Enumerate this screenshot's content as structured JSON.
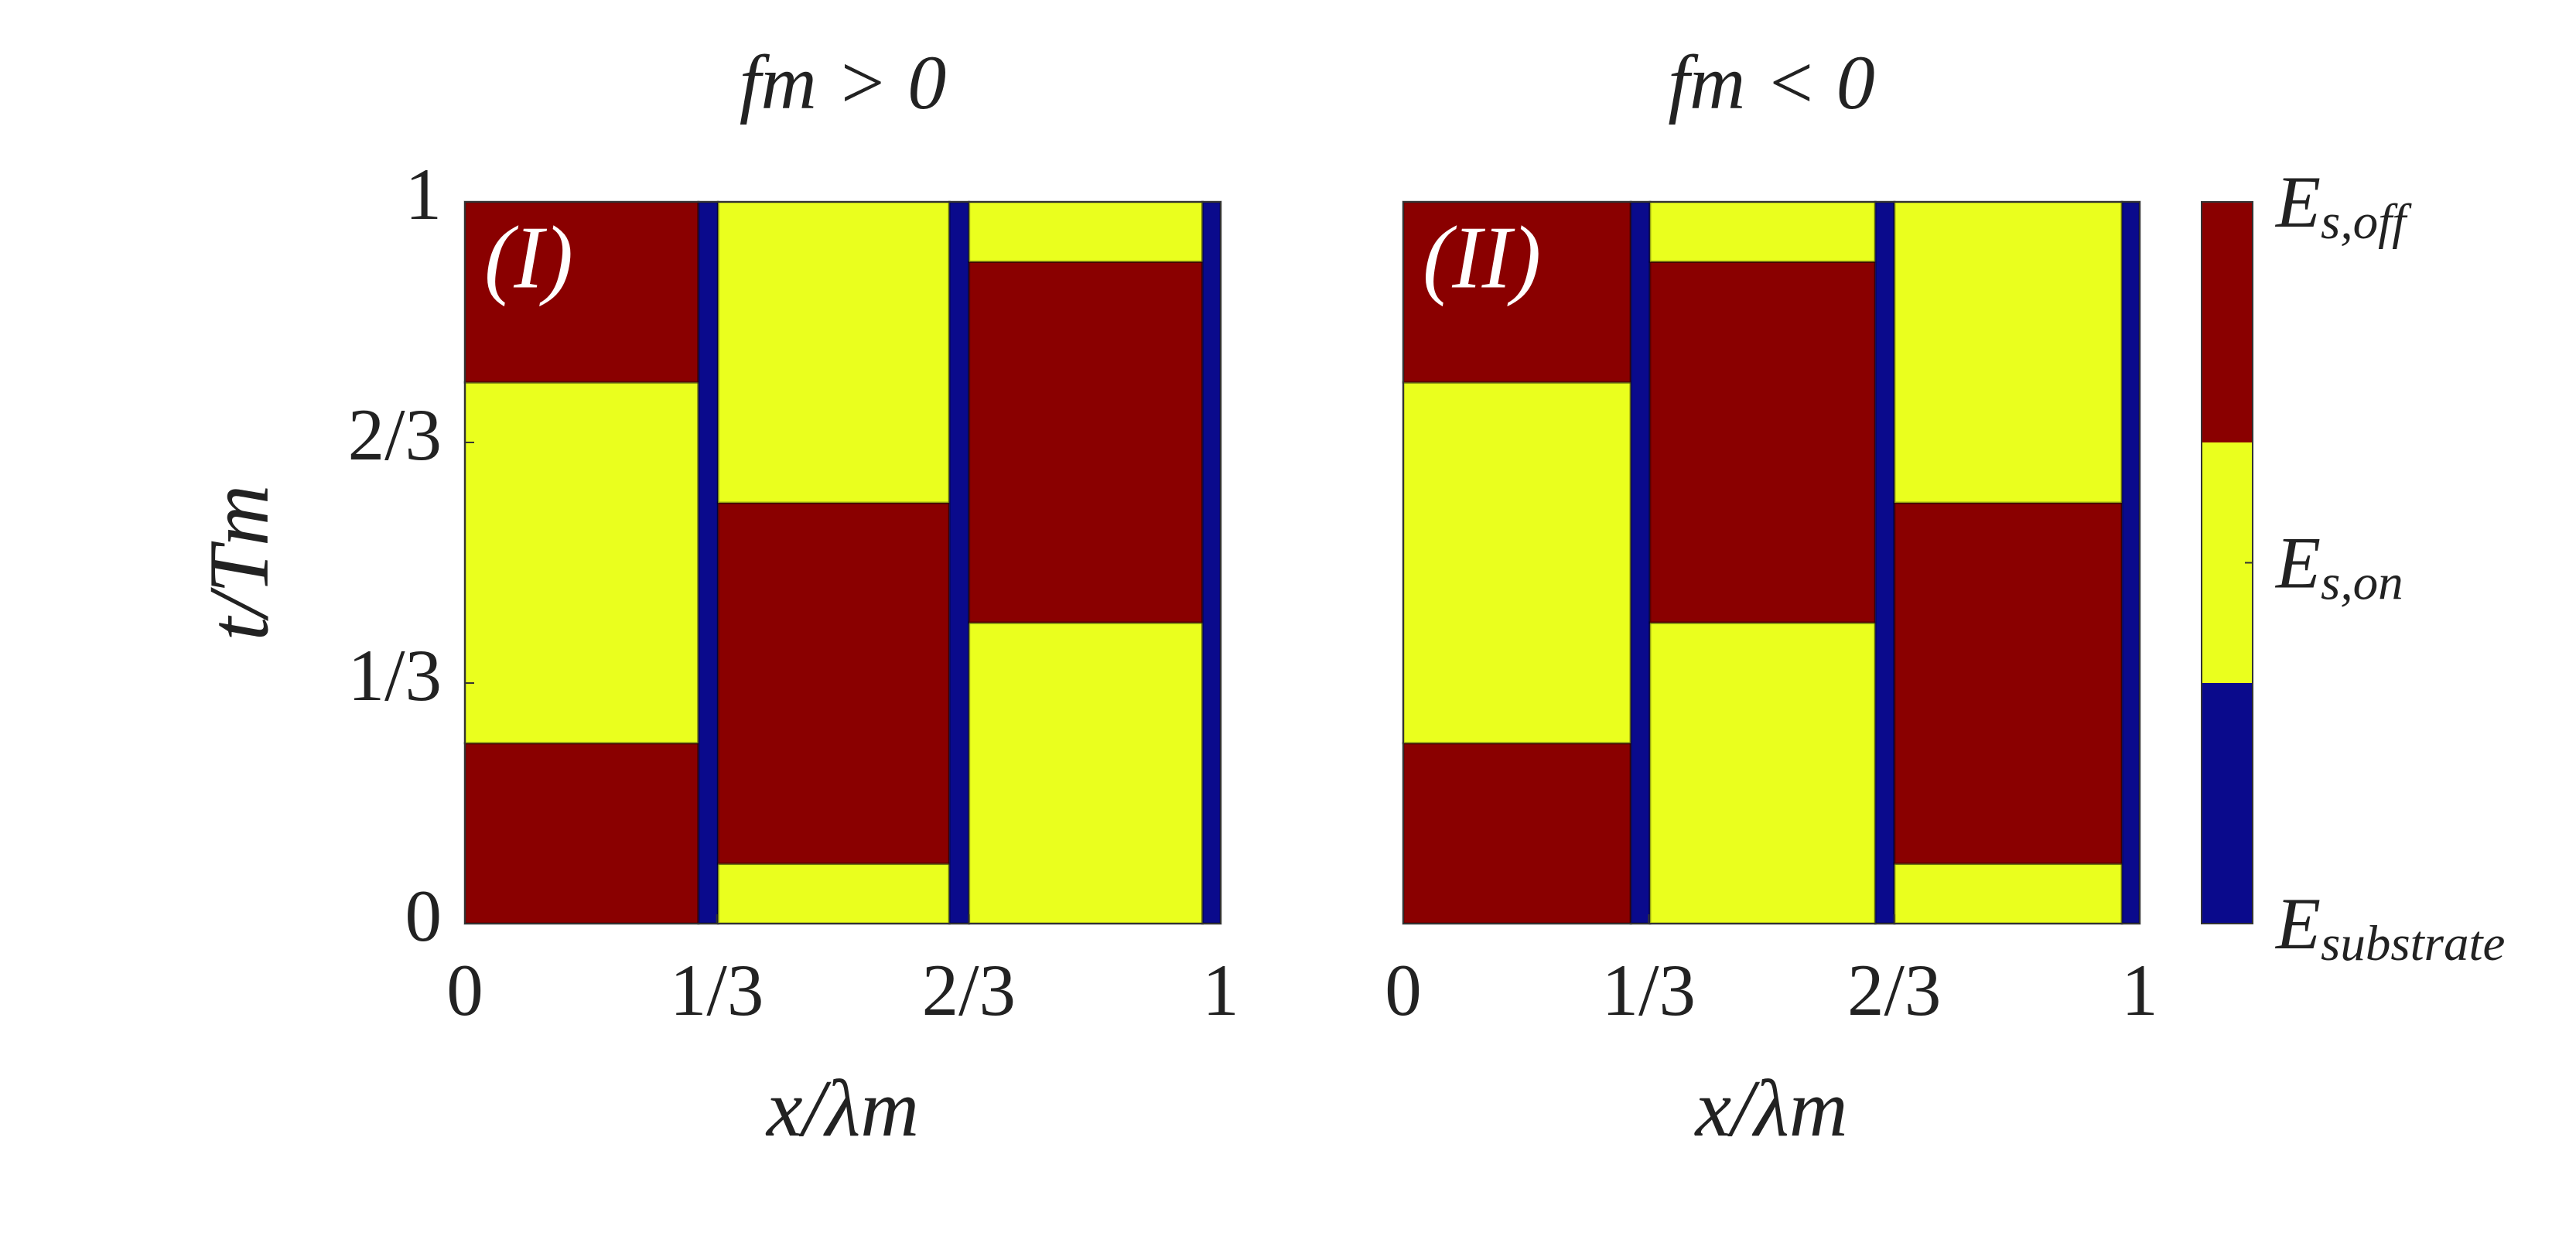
{
  "chart_data": [
    {
      "type": "heatmap",
      "title": "fm > 0",
      "annotation": "(I)",
      "xlabel": "x/λm",
      "ylabel": "t/Tm",
      "xlim": [
        0,
        1
      ],
      "ylim": [
        0,
        1
      ],
      "xticks": [
        0,
        {
          "value": 0.3333,
          "label": "1/3"
        },
        {
          "value": 0.6667,
          "label": "2/3"
        },
        1
      ],
      "yticks": [
        0,
        {
          "value": 0.3333,
          "label": "1/3"
        },
        {
          "value": 0.6667,
          "label": "2/3"
        },
        1
      ],
      "cells": [
        {
          "x": [
            0,
            0.309
          ],
          "y": [
            0,
            0.25
          ],
          "value": 3
        },
        {
          "x": [
            0,
            0.309
          ],
          "y": [
            0.25,
            0.75
          ],
          "value": 1.5
        },
        {
          "x": [
            0,
            0.309
          ],
          "y": [
            0.75,
            1
          ],
          "value": 3
        },
        {
          "x": [
            0.309,
            0.335
          ],
          "y": [
            0,
            1
          ],
          "value": 0
        },
        {
          "x": [
            0.335,
            0.641
          ],
          "y": [
            0,
            0.083
          ],
          "value": 1.5
        },
        {
          "x": [
            0.335,
            0.641
          ],
          "y": [
            0.083,
            0.583
          ],
          "value": 3
        },
        {
          "x": [
            0.335,
            0.641
          ],
          "y": [
            0.583,
            1
          ],
          "value": 1.5
        },
        {
          "x": [
            0.641,
            0.667
          ],
          "y": [
            0,
            1
          ],
          "value": 0
        },
        {
          "x": [
            0.667,
            0.976
          ],
          "y": [
            0,
            0.417
          ],
          "value": 1.5
        },
        {
          "x": [
            0.667,
            0.976
          ],
          "y": [
            0.417,
            0.917
          ],
          "value": 3
        },
        {
          "x": [
            0.667,
            0.976
          ],
          "y": [
            0.917,
            1
          ],
          "value": 1.5
        },
        {
          "x": [
            0.976,
            1
          ],
          "y": [
            0,
            1
          ],
          "value": 0
        }
      ]
    },
    {
      "type": "heatmap",
      "title": "fm < 0",
      "annotation": "(II)",
      "xlabel": "x/λm",
      "xlim": [
        0,
        1
      ],
      "ylim": [
        0,
        1
      ],
      "xticks": [
        0,
        {
          "value": 0.3333,
          "label": "1/3"
        },
        {
          "value": 0.6667,
          "label": "2/3"
        },
        1
      ],
      "cells": [
        {
          "x": [
            0,
            0.309
          ],
          "y": [
            0,
            0.25
          ],
          "value": 3
        },
        {
          "x": [
            0,
            0.309
          ],
          "y": [
            0.25,
            0.75
          ],
          "value": 1.5
        },
        {
          "x": [
            0,
            0.309
          ],
          "y": [
            0.75,
            1
          ],
          "value": 3
        },
        {
          "x": [
            0.309,
            0.335
          ],
          "y": [
            0,
            1
          ],
          "value": 0
        },
        {
          "x": [
            0.335,
            0.641
          ],
          "y": [
            0,
            0.417
          ],
          "value": 1.5
        },
        {
          "x": [
            0.335,
            0.641
          ],
          "y": [
            0.417,
            0.917
          ],
          "value": 3
        },
        {
          "x": [
            0.335,
            0.641
          ],
          "y": [
            0.917,
            1
          ],
          "value": 1.5
        },
        {
          "x": [
            0.641,
            0.667
          ],
          "y": [
            0,
            1
          ],
          "value": 0
        },
        {
          "x": [
            0.667,
            0.976
          ],
          "y": [
            0,
            0.083
          ],
          "value": 1.5
        },
        {
          "x": [
            0.667,
            0.976
          ],
          "y": [
            0.083,
            0.583
          ],
          "value": 3
        },
        {
          "x": [
            0.667,
            0.976
          ],
          "y": [
            0.583,
            1
          ],
          "value": 1.5
        },
        {
          "x": [
            0.976,
            1
          ],
          "y": [
            0,
            1
          ],
          "value": 0
        }
      ]
    },
    {
      "type": "colorbar",
      "clim": [
        0,
        3
      ],
      "colors": [
        "#0a0a8c",
        "#eaff1e",
        "#8a0000"
      ],
      "ticks": [
        {
          "value": 0,
          "label": "Esubstrate"
        },
        {
          "value": 1.5,
          "label": "Es,on"
        },
        {
          "value": 3,
          "label": "Es,off"
        }
      ]
    }
  ]
}
